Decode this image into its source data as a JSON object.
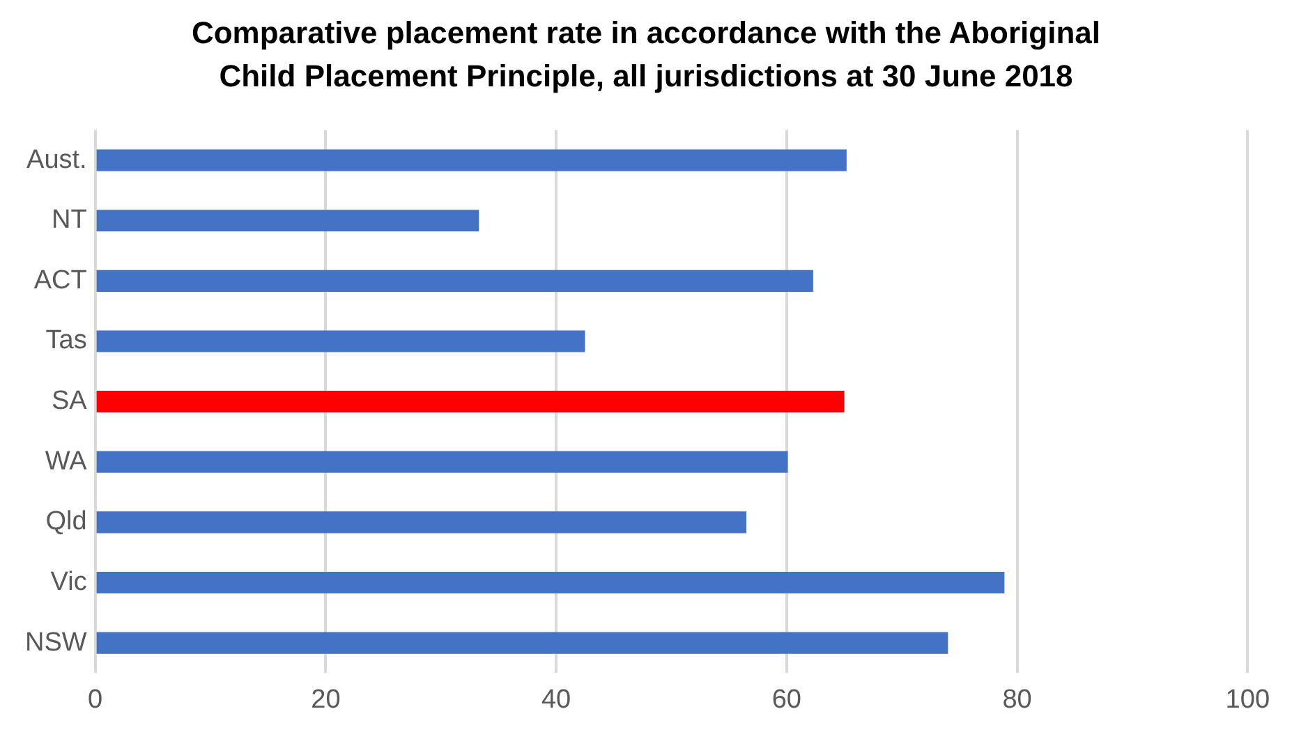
{
  "chart_data": {
    "type": "bar",
    "orientation": "horizontal",
    "title": "Comparative placement rate in accordance with the Aboriginal Child Placement Principle, all jurisdictions at 30 June 2018",
    "categories": [
      "Aust.",
      "NT",
      "ACT",
      "Tas",
      "SA",
      "WA",
      "Qld",
      "Vic",
      "NSW"
    ],
    "values": [
      65.2,
      33.3,
      62.3,
      42.5,
      65.0,
      60.1,
      56.5,
      78.9,
      74.0
    ],
    "colors": [
      "#4472c4",
      "#4472c4",
      "#4472c4",
      "#4472c4",
      "#ff0000",
      "#4472c4",
      "#4472c4",
      "#4472c4",
      "#4472c4"
    ],
    "xlim": [
      0,
      100
    ],
    "xticks": [
      0,
      20,
      40,
      60,
      80,
      100
    ],
    "grid": "x",
    "legend": false
  }
}
